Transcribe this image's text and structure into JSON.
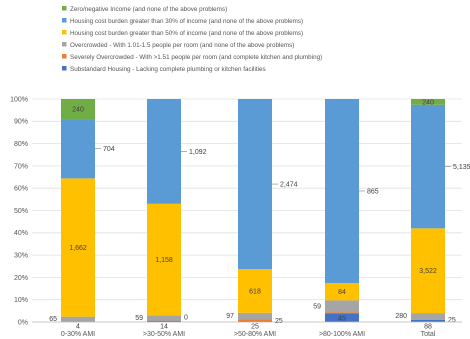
{
  "chart_data": {
    "type": "bar",
    "stacked": "percent",
    "categories": [
      "0-30% AMI",
      ">30-50% AMI",
      ">50-80% AMI",
      ">80-100% AMI",
      "Total"
    ],
    "ylim": [
      0,
      100
    ],
    "yticks": [
      "0%",
      "10%",
      "20%",
      "30%",
      "40%",
      "50%",
      "60%",
      "70%",
      "80%",
      "90%",
      "100%"
    ],
    "grid": true,
    "legend_position": "top",
    "series": [
      {
        "name": "Substandard Housing - Lacking complete plumbing or kitchen facilities",
        "color": "#4472c4",
        "values": [
          0.3,
          0.6,
          0.4,
          3.8,
          0.9
        ]
      },
      {
        "name": "Severely Overcrowded - With >1.51 people per room (and complete kitchen and plumbing)",
        "color": "#ed7d31",
        "values": [
          0.1,
          0.1,
          0.7,
          0.5,
          0.3
        ]
      },
      {
        "name": "Overcrowded - With 1.01-1.5 people per room (and none of the above problems)",
        "color": "#a5a5a5",
        "values": [
          2.0,
          2.3,
          3.0,
          5.4,
          2.8
        ]
      },
      {
        "name": "Housing cost burden greater than 50% of income (and none of the above problems)",
        "color": "#ffc000",
        "values": [
          62.0,
          50.0,
          19.6,
          7.8,
          38.0
        ]
      },
      {
        "name": "Housing cost burden greater than 30% of income (and none of the above problems)",
        "color": "#5b9bd5",
        "values": [
          26.6,
          47.0,
          76.3,
          82.5,
          55.4
        ]
      },
      {
        "name": "Zero/negative Income (and none of the above problems)",
        "color": "#70ad47",
        "values": [
          9.0,
          0.0,
          0.0,
          0.0,
          2.6
        ]
      }
    ],
    "data_labels": [
      [
        "",
        "",
        "65",
        "1,662",
        "704",
        "240"
      ],
      [
        "",
        "",
        "59",
        "1,158",
        "1,092",
        ""
      ],
      [
        "",
        "25",
        "97",
        "618",
        "2,474",
        ""
      ],
      [
        "45",
        "",
        "59",
        "84",
        "865",
        ""
      ],
      [
        "",
        "25",
        "280",
        "3,522",
        "5,135",
        "240"
      ]
    ],
    "category_bottom_labels": [
      "4",
      "14",
      "25",
      "",
      "88"
    ],
    "extra_labels": [
      "0"
    ],
    "legend_order": [
      5,
      4,
      3,
      2,
      1,
      0
    ]
  }
}
